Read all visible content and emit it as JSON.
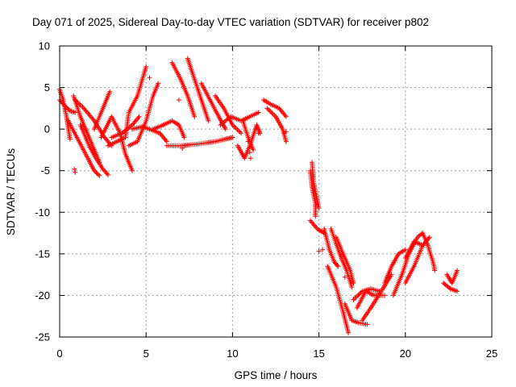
{
  "chart_data": {
    "type": "scatter",
    "title": "Day 071 of 2025, Sidereal Day-to-day VTEC variation (SDTVAR) for receiver p802",
    "xlabel": "GPS time / hours",
    "ylabel": "SDTVAR / TECUs",
    "xlim": [
      0,
      25
    ],
    "ylim": [
      -25,
      10
    ],
    "xticks": [
      0,
      5,
      10,
      15,
      20,
      25
    ],
    "yticks": [
      -25,
      -20,
      -15,
      -10,
      -5,
      0,
      5,
      10
    ],
    "grid": true,
    "marker": "+",
    "series_color": "#ff0000",
    "tracks": [
      [
        [
          0.0,
          4.8
        ],
        [
          0.2,
          3.5
        ],
        [
          0.4,
          1.5
        ],
        [
          0.5,
          0.0
        ],
        [
          0.6,
          -1.2
        ]
      ],
      [
        [
          0.0,
          3.5
        ],
        [
          0.3,
          2.8
        ],
        [
          0.6,
          2.2
        ],
        [
          0.9,
          2.0
        ]
      ],
      [
        [
          0.8,
          4.0
        ],
        [
          1.2,
          1.5
        ],
        [
          1.6,
          -0.5
        ],
        [
          2.0,
          -2.5
        ],
        [
          2.3,
          -4.0
        ]
      ],
      [
        [
          0.9,
          3.5
        ],
        [
          1.4,
          2.5
        ],
        [
          2.0,
          1.0
        ],
        [
          2.6,
          -1.0
        ],
        [
          3.0,
          -2.0
        ]
      ],
      [
        [
          1.2,
          0.5
        ],
        [
          1.7,
          -2.0
        ],
        [
          2.1,
          -3.5
        ],
        [
          2.5,
          -4.8
        ],
        [
          2.8,
          -5.5
        ]
      ],
      [
        [
          0.5,
          1.0
        ],
        [
          1.0,
          -1.0
        ],
        [
          1.5,
          -3.0
        ],
        [
          2.0,
          -5.0
        ],
        [
          2.3,
          -5.6
        ]
      ],
      [
        [
          2.0,
          0.0
        ],
        [
          2.5,
          2.5
        ],
        [
          2.9,
          4.5
        ]
      ],
      [
        [
          2.4,
          -1.0
        ],
        [
          3.0,
          1.5
        ],
        [
          3.5,
          -0.5
        ],
        [
          3.8,
          -3.0
        ],
        [
          4.2,
          -5.0
        ]
      ],
      [
        [
          2.8,
          -2.0
        ],
        [
          3.3,
          -1.5
        ],
        [
          3.8,
          -1.0
        ],
        [
          4.0,
          2.0
        ],
        [
          4.5,
          4.0
        ],
        [
          5.0,
          7.5
        ]
      ],
      [
        [
          3.0,
          -1.0
        ],
        [
          3.6,
          -0.5
        ],
        [
          4.2,
          0.5
        ],
        [
          4.6,
          1.5
        ]
      ],
      [
        [
          4.0,
          -2.0
        ],
        [
          4.5,
          -1.5
        ],
        [
          5.0,
          1.0
        ],
        [
          5.4,
          4.0
        ],
        [
          5.7,
          5.5
        ]
      ],
      [
        [
          4.2,
          0.0
        ],
        [
          4.8,
          0.3
        ],
        [
          5.2,
          0.0
        ],
        [
          5.8,
          -0.5
        ],
        [
          6.2,
          -1.5
        ]
      ],
      [
        [
          5.4,
          0.0
        ],
        [
          6.0,
          0.5
        ],
        [
          6.5,
          1.0
        ],
        [
          6.9,
          0.5
        ],
        [
          7.2,
          -1.0
        ]
      ],
      [
        [
          6.5,
          8.0
        ],
        [
          7.0,
          6.0
        ],
        [
          7.4,
          4.0
        ],
        [
          7.8,
          1.5
        ]
      ],
      [
        [
          7.4,
          8.5
        ],
        [
          7.8,
          6.0
        ],
        [
          8.2,
          3.5
        ],
        [
          8.6,
          1.0
        ]
      ],
      [
        [
          6.2,
          -2.0
        ],
        [
          7.0,
          -2.0
        ],
        [
          8.0,
          -1.8
        ],
        [
          9.0,
          -1.5
        ],
        [
          10.0,
          -1.0
        ]
      ],
      [
        [
          8.2,
          5.5
        ],
        [
          8.7,
          3.5
        ],
        [
          9.2,
          1.5
        ],
        [
          9.6,
          0.0
        ]
      ],
      [
        [
          9.0,
          4.0
        ],
        [
          9.5,
          2.5
        ],
        [
          10.0,
          0.5
        ],
        [
          10.5,
          -0.5
        ]
      ],
      [
        [
          9.3,
          0.5
        ],
        [
          9.9,
          1.5
        ],
        [
          10.5,
          1.0
        ],
        [
          11.0,
          1.5
        ],
        [
          11.5,
          2.0
        ]
      ],
      [
        [
          10.3,
          -2.0
        ],
        [
          10.7,
          -3.5
        ],
        [
          11.0,
          -2.0
        ],
        [
          11.4,
          0.5
        ],
        [
          11.6,
          -0.5
        ]
      ],
      [
        [
          10.6,
          1.0
        ],
        [
          10.9,
          -1.0
        ],
        [
          11.2,
          -2.5
        ]
      ],
      [
        [
          11.8,
          3.5
        ],
        [
          12.2,
          3.0
        ],
        [
          12.7,
          2.5
        ],
        [
          13.1,
          1.5
        ]
      ],
      [
        [
          12.0,
          2.5
        ],
        [
          12.5,
          1.5
        ],
        [
          12.9,
          0.0
        ],
        [
          13.1,
          -1.5
        ]
      ],
      [
        [
          14.6,
          -4.0
        ],
        [
          14.7,
          -6.5
        ],
        [
          14.9,
          -8.5
        ],
        [
          15.0,
          -9.5
        ]
      ],
      [
        [
          14.5,
          -5.0
        ],
        [
          14.6,
          -7.0
        ],
        [
          14.8,
          -9.0
        ],
        [
          14.8,
          -10.5
        ]
      ],
      [
        [
          14.5,
          -11.0
        ],
        [
          14.9,
          -12.0
        ],
        [
          15.3,
          -12.5
        ]
      ],
      [
        [
          15.3,
          -12.0
        ],
        [
          15.6,
          -14.5
        ],
        [
          15.9,
          -16.0
        ],
        [
          16.1,
          -16.5
        ]
      ],
      [
        [
          15.7,
          -12.0
        ],
        [
          16.2,
          -15.0
        ],
        [
          16.6,
          -17.0
        ],
        [
          16.9,
          -19.0
        ]
      ],
      [
        [
          16.0,
          -13.0
        ],
        [
          16.5,
          -15.5
        ],
        [
          16.8,
          -17.0
        ],
        [
          17.0,
          -18.5
        ]
      ],
      [
        [
          15.5,
          -16.5
        ],
        [
          16.0,
          -19.0
        ],
        [
          16.4,
          -22.0
        ],
        [
          16.7,
          -24.5
        ]
      ],
      [
        [
          16.5,
          -21.0
        ],
        [
          16.9,
          -23.0
        ],
        [
          17.3,
          -23.3
        ],
        [
          17.8,
          -23.5
        ]
      ],
      [
        [
          17.2,
          -21.5
        ],
        [
          17.7,
          -19.5
        ],
        [
          18.2,
          -20.0
        ],
        [
          18.8,
          -20.0
        ]
      ],
      [
        [
          17.0,
          -20.5
        ],
        [
          17.5,
          -19.5
        ],
        [
          18.0,
          -19.2
        ],
        [
          18.5,
          -19.5
        ]
      ],
      [
        [
          17.5,
          -23.0
        ],
        [
          18.0,
          -21.5
        ],
        [
          18.6,
          -19.5
        ],
        [
          19.2,
          -17.5
        ]
      ],
      [
        [
          18.8,
          -18.5
        ],
        [
          19.2,
          -16.5
        ],
        [
          19.6,
          -15.0
        ],
        [
          20.0,
          -14.5
        ]
      ],
      [
        [
          19.3,
          -20.0
        ],
        [
          19.8,
          -17.5
        ],
        [
          20.2,
          -15.0
        ],
        [
          20.7,
          -13.0
        ],
        [
          21.0,
          -12.5
        ]
      ],
      [
        [
          20.0,
          -18.5
        ],
        [
          20.5,
          -16.5
        ],
        [
          21.0,
          -14.0
        ],
        [
          21.4,
          -13.0
        ]
      ],
      [
        [
          20.0,
          -15.5
        ],
        [
          20.5,
          -13.5
        ],
        [
          21.0,
          -14.0
        ]
      ],
      [
        [
          21.0,
          -12.5
        ],
        [
          21.3,
          -14.0
        ],
        [
          21.6,
          -16.0
        ],
        [
          21.7,
          -17.0
        ]
      ],
      [
        [
          22.4,
          -17.5
        ],
        [
          22.7,
          -18.5
        ],
        [
          23.0,
          -17.0
        ]
      ],
      [
        [
          22.2,
          -18.5
        ],
        [
          22.6,
          -19.2
        ],
        [
          23.0,
          -19.5
        ]
      ]
    ],
    "scatter_points": [
      [
        0.9,
        -5.2
      ],
      [
        0.85,
        -4.8
      ],
      [
        7.1,
        -2.3
      ],
      [
        10.9,
        -1.5
      ],
      [
        11.0,
        -2.8
      ],
      [
        11.05,
        -3.5
      ],
      [
        15.2,
        -14.5
      ],
      [
        15.0,
        -14.7
      ],
      [
        16.1,
        -16.5
      ],
      [
        16.5,
        -17.8
      ],
      [
        13.0,
        -0.5
      ],
      [
        13.1,
        -0.3
      ],
      [
        11.5,
        -0.5
      ],
      [
        6.9,
        3.5
      ],
      [
        5.2,
        6.2
      ]
    ]
  }
}
